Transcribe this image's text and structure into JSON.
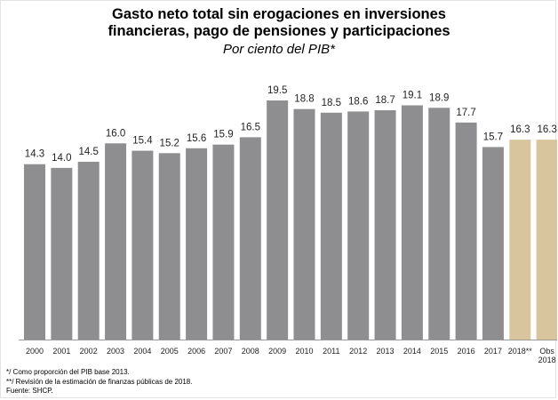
{
  "chart_data": {
    "type": "bar",
    "title_line1": "Gasto neto total sin erogaciones en inversiones",
    "title_line2": "financieras, pago de pensiones y participaciones",
    "subtitle": "Por ciento del PIB*",
    "categories": [
      "2000",
      "2001",
      "2002",
      "2003",
      "2004",
      "2005",
      "2006",
      "2007",
      "2008",
      "2009",
      "2010",
      "2011",
      "2012",
      "2013",
      "2014",
      "2015",
      "2016",
      "2017",
      "2018**",
      "Obs 2018"
    ],
    "values": [
      14.3,
      14.0,
      14.5,
      16.0,
      15.4,
      15.2,
      15.6,
      15.9,
      16.5,
      19.5,
      18.8,
      18.5,
      18.6,
      18.7,
      19.1,
      18.9,
      17.7,
      15.7,
      16.3,
      16.3
    ],
    "value_labels": [
      "14.3",
      "14.0",
      "14.5",
      "16.0",
      "15.4",
      "15.2",
      "15.6",
      "15.9",
      "16.5",
      "19.5",
      "18.8",
      "18.5",
      "18.6",
      "18.7",
      "19.1",
      "18.9",
      "17.7",
      "15.7",
      "16.3",
      "16.3"
    ],
    "bar_colors": [
      "#8e8e90",
      "#8e8e90",
      "#8e8e90",
      "#8e8e90",
      "#8e8e90",
      "#8e8e90",
      "#8e8e90",
      "#8e8e90",
      "#8e8e90",
      "#8e8e90",
      "#8e8e90",
      "#8e8e90",
      "#8e8e90",
      "#8e8e90",
      "#8e8e90",
      "#8e8e90",
      "#8e8e90",
      "#8e8e90",
      "#d8c49d",
      "#d8c49d"
    ],
    "ylim": [
      0,
      19.5
    ],
    "grid": false,
    "legend": "none"
  },
  "notes": {
    "note1": "*/ Como proporción del PIB base 2013.",
    "note2": "**/ Revisión de la estimación de finanzas públicas de 2018.",
    "source": "Fuente: SHCP."
  }
}
